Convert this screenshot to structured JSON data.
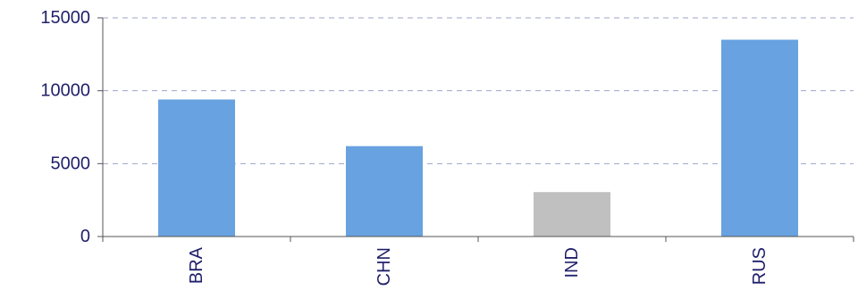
{
  "chart_data": {
    "type": "bar",
    "title": "",
    "xlabel": "",
    "ylabel": "",
    "categories": [
      "BRA",
      "CHN",
      "IND",
      "RUS"
    ],
    "values": [
      9400,
      6200,
      3050,
      13500
    ],
    "bar_colors": [
      "#68a2e0",
      "#68a2e0",
      "#c0c0c0",
      "#68a2e0"
    ],
    "ylim": [
      0,
      15000
    ],
    "yticks": [
      0,
      5000,
      10000,
      15000
    ],
    "ytick_labels": [
      "0",
      "5000",
      "10000",
      "15000"
    ],
    "grid": true,
    "legend": "none"
  }
}
